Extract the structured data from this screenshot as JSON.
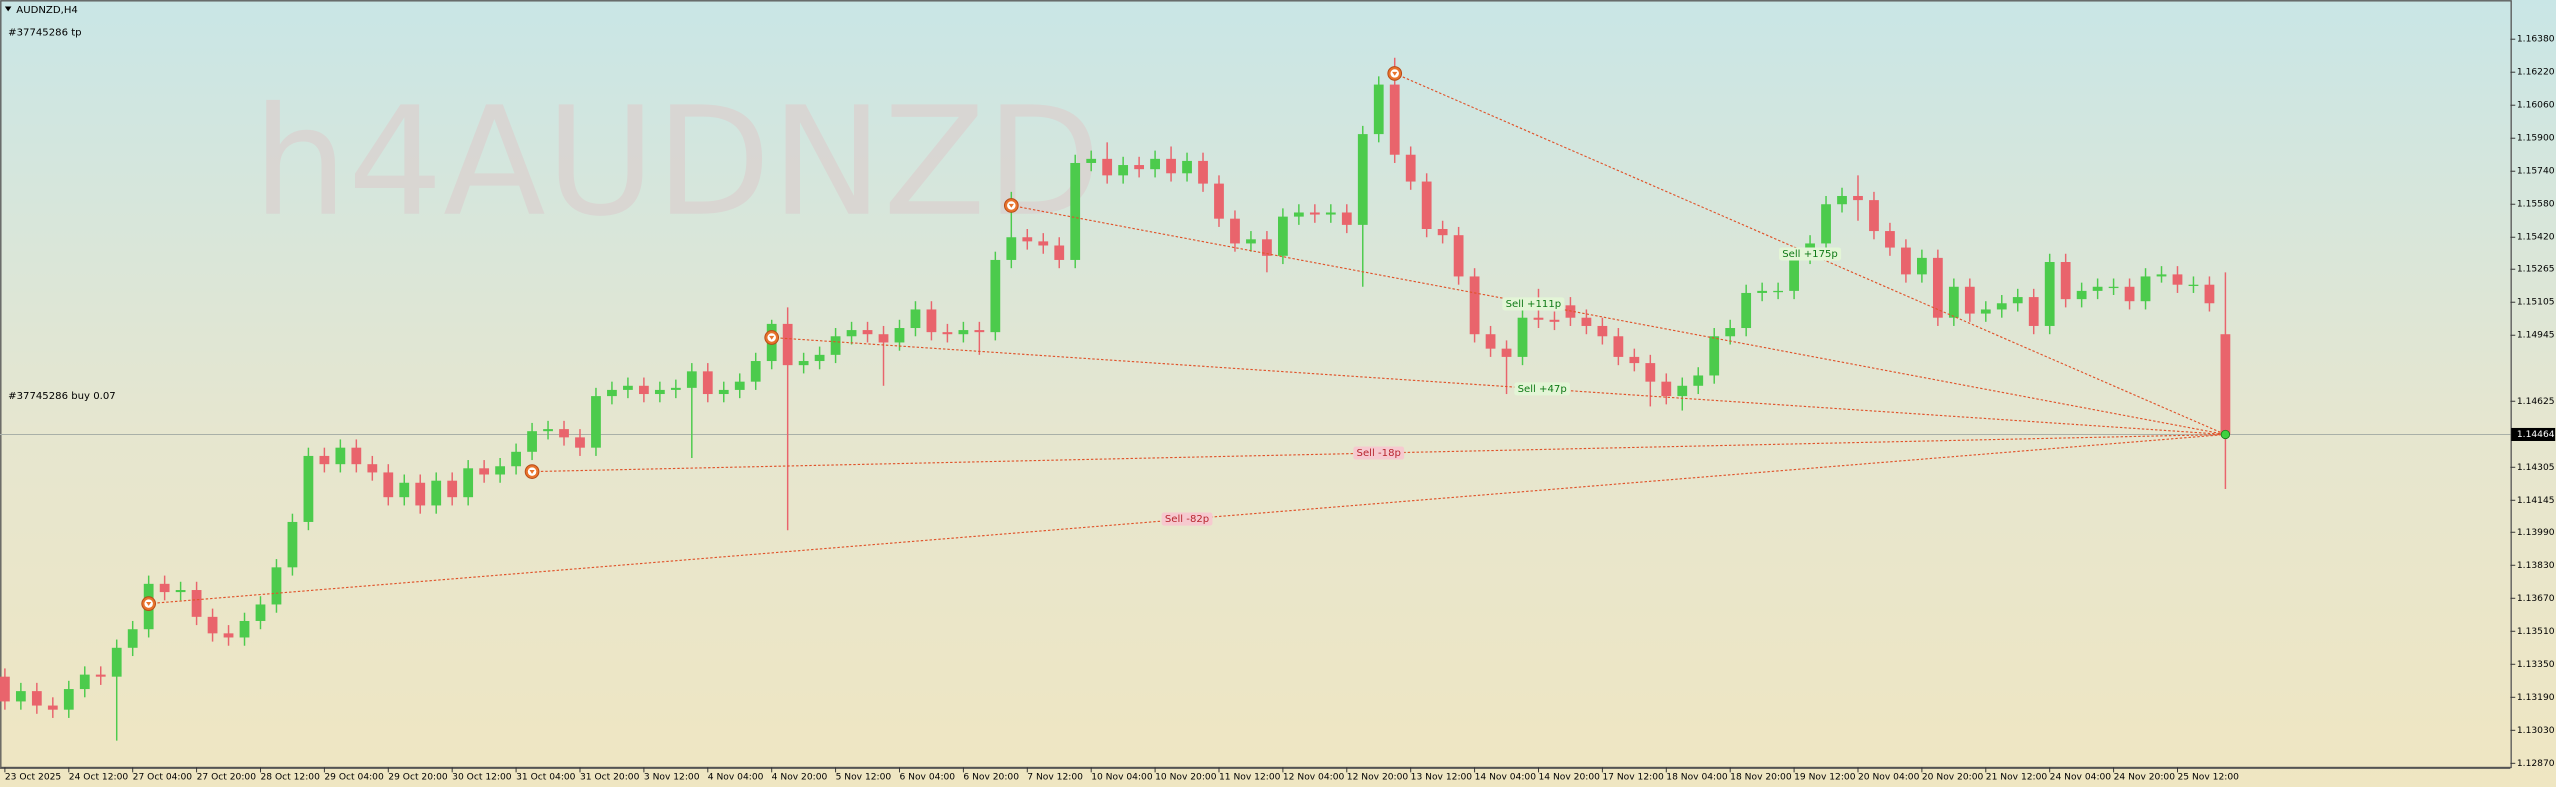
{
  "chart_data": {
    "type": "candlestick",
    "title": "AUDNZD,H4",
    "watermark": "h4AUDNZD",
    "order_labels": [
      "#37745286 tp",
      "#37745286 buy 0.07"
    ],
    "up_color": "#4ccb4c",
    "down_color": "#e9646c",
    "categories": [
      "23 Oct 2025",
      null,
      null,
      null,
      "24 Oct 12:00",
      null,
      null,
      null,
      "27 Oct 04:00",
      null,
      null,
      null,
      "27 Oct 20:00",
      null,
      null,
      null,
      "28 Oct 12:00",
      null,
      null,
      null,
      "29 Oct 04:00",
      null,
      null,
      null,
      "29 Oct 20:00",
      null,
      null,
      null,
      "30 Oct 12:00",
      null,
      null,
      null,
      "31 Oct 04:00",
      null,
      null,
      null,
      "31 Oct 20:00",
      null,
      null,
      null,
      "3 Nov 12:00",
      null,
      null,
      null,
      "4 Nov 04:00",
      null,
      null,
      null,
      "4 Nov 20:00",
      null,
      null,
      null,
      "5 Nov 12:00",
      null,
      null,
      null,
      "6 Nov 04:00",
      null,
      null,
      null,
      "6 Nov 20:00",
      null,
      null,
      null,
      "7 Nov 12:00",
      null,
      null,
      null,
      "10 Nov 04:00",
      null,
      null,
      null,
      "10 Nov 20:00",
      null,
      null,
      null,
      "11 Nov 12:00",
      null,
      null,
      null,
      "12 Nov 04:00",
      null,
      null,
      null,
      "12 Nov 20:00",
      null,
      null,
      null,
      "13 Nov 12:00",
      null,
      null,
      null,
      "14 Nov 04:00",
      null,
      null,
      null,
      "14 Nov 20:00",
      null,
      null,
      null,
      "17 Nov 12:00",
      null,
      null,
      null,
      "18 Nov 04:00",
      null,
      null,
      null,
      "18 Nov 20:00",
      null,
      null,
      null,
      "19 Nov 12:00",
      null,
      null,
      null,
      "20 Nov 04:00",
      null,
      null,
      null,
      "20 Nov 20:00",
      null,
      null,
      null,
      "21 Nov 12:00",
      null,
      null,
      null,
      "24 Nov 04:00",
      null,
      null,
      null,
      "24 Nov 20:00",
      null,
      null,
      null,
      "25 Nov 12:00",
      null,
      null,
      null
    ],
    "open": [
      1.1329,
      1.1317,
      1.1322,
      1.1315,
      1.1313,
      1.1323,
      1.133,
      1.1329,
      1.1343,
      1.1352,
      1.1374,
      1.137,
      1.1371,
      1.1358,
      1.135,
      1.1348,
      1.1356,
      1.1364,
      1.1382,
      1.1404,
      1.1436,
      1.1432,
      1.144,
      1.1432,
      1.1428,
      1.1416,
      1.1423,
      1.1412,
      1.1424,
      1.1416,
      1.143,
      1.1427,
      1.1431,
      1.1438,
      1.1448,
      1.1449,
      1.1445,
      1.144,
      1.1465,
      1.1468,
      1.147,
      1.1466,
      1.1468,
      1.1469,
      1.1477,
      1.1466,
      1.1468,
      1.1472,
      1.1482,
      1.15,
      1.148,
      1.1482,
      1.1485,
      1.1494,
      1.1497,
      1.1495,
      1.1491,
      1.1498,
      1.1507,
      1.1496,
      1.1495,
      1.1497,
      1.1496,
      1.1531,
      1.1542,
      1.154,
      1.1538,
      1.1531,
      1.1578,
      1.158,
      1.1572,
      1.1577,
      1.1575,
      1.158,
      1.1573,
      1.1579,
      1.1568,
      1.1551,
      1.1539,
      1.1541,
      1.1533,
      1.1552,
      1.1554,
      1.1553,
      1.1554,
      1.1548,
      1.1592,
      1.1616,
      1.1582,
      1.1569,
      1.1546,
      1.1543,
      1.1523,
      1.1495,
      1.1488,
      1.1484,
      1.1503,
      1.1502,
      1.1509,
      1.1503,
      1.1499,
      1.1494,
      1.1484,
      1.1481,
      1.1472,
      1.1465,
      1.147,
      1.1475,
      1.1494,
      1.1498,
      1.1515,
      1.1516,
      1.1516,
      1.1533,
      1.1539,
      1.1558,
      1.1562,
      1.156,
      1.1545,
      1.1537,
      1.1524,
      1.1532,
      1.1503,
      1.1518,
      1.1505,
      1.1507,
      1.151,
      1.1513,
      1.1499,
      1.153,
      1.1512,
      1.1516,
      1.1518,
      1.1518,
      1.1511,
      1.1523,
      1.1524,
      1.1519,
      1.1519,
      1.1495
    ],
    "high": [
      1.1333,
      1.1326,
      1.1326,
      1.1319,
      1.1327,
      1.1334,
      1.1334,
      1.1347,
      1.1356,
      1.1378,
      1.1378,
      1.1375,
      1.1375,
      1.1362,
      1.1354,
      1.136,
      1.1368,
      1.1386,
      1.1408,
      1.144,
      1.144,
      1.1444,
      1.1444,
      1.1436,
      1.1432,
      1.1427,
      1.1427,
      1.1428,
      1.1428,
      1.1434,
      1.1434,
      1.1435,
      1.1442,
      1.1452,
      1.1453,
      1.1453,
      1.1449,
      1.1469,
      1.1472,
      1.1474,
      1.1474,
      1.1472,
      1.1473,
      1.1481,
      1.1481,
      1.1472,
      1.1476,
      1.1486,
      1.1502,
      1.1508,
      1.1486,
      1.1489,
      1.1498,
      1.1501,
      1.1501,
      1.1499,
      1.1502,
      1.1511,
      1.1511,
      1.15,
      1.1501,
      1.1501,
      1.1535,
      1.1564,
      1.1546,
      1.1544,
      1.1542,
      1.1582,
      1.1584,
      1.1588,
      1.1581,
      1.1581,
      1.1584,
      1.1586,
      1.1583,
      1.1583,
      1.1572,
      1.1555,
      1.1545,
      1.1545,
      1.1556,
      1.1558,
      1.1558,
      1.1558,
      1.1558,
      1.1596,
      1.162,
      1.1629,
      1.1586,
      1.1573,
      1.155,
      1.1547,
      1.1527,
      1.1499,
      1.1492,
      1.1507,
      1.1517,
      1.1506,
      1.1513,
      1.1507,
      1.1503,
      1.1498,
      1.1488,
      1.1485,
      1.1476,
      1.1474,
      1.1479,
      1.1498,
      1.1502,
      1.1519,
      1.152,
      1.152,
      1.1537,
      1.1543,
      1.1562,
      1.1566,
      1.1572,
      1.1564,
      1.1549,
      1.1541,
      1.1536,
      1.1536,
      1.1522,
      1.1522,
      1.1511,
      1.1514,
      1.1517,
      1.1517,
      1.1534,
      1.1534,
      1.152,
      1.1522,
      1.1522,
      1.1522,
      1.1527,
      1.1528,
      1.1528,
      1.1523,
      1.1523,
      1.1525
    ],
    "low": [
      1.1313,
      1.1313,
      1.1311,
      1.1309,
      1.1309,
      1.1319,
      1.1325,
      1.1298,
      1.1339,
      1.1348,
      1.1366,
      1.1366,
      1.1354,
      1.1346,
      1.1344,
      1.1344,
      1.1352,
      1.136,
      1.1378,
      1.14,
      1.1428,
      1.1428,
      1.1428,
      1.1424,
      1.1412,
      1.1412,
      1.1408,
      1.1408,
      1.1412,
      1.1412,
      1.1423,
      1.1423,
      1.1427,
      1.1434,
      1.1444,
      1.1441,
      1.1436,
      1.1436,
      1.1461,
      1.1464,
      1.1462,
      1.1462,
      1.1464,
      1.1435,
      1.1462,
      1.1462,
      1.1464,
      1.1468,
      1.1478,
      1.14,
      1.1476,
      1.1478,
      1.1481,
      1.149,
      1.1491,
      1.147,
      1.1487,
      1.1494,
      1.1492,
      1.1491,
      1.1491,
      1.1485,
      1.1492,
      1.1527,
      1.1536,
      1.1534,
      1.1527,
      1.1527,
      1.1574,
      1.1568,
      1.1568,
      1.1571,
      1.1571,
      1.1569,
      1.1569,
      1.1564,
      1.1547,
      1.1535,
      1.1535,
      1.1525,
      1.1529,
      1.1548,
      1.1549,
      1.1549,
      1.1544,
      1.1518,
      1.1588,
      1.1578,
      1.1565,
      1.1542,
      1.1539,
      1.1519,
      1.1491,
      1.1484,
      1.1466,
      1.148,
      1.1498,
      1.1497,
      1.1499,
      1.1495,
      1.149,
      1.148,
      1.1477,
      1.146,
      1.1461,
      1.1458,
      1.1466,
      1.1471,
      1.149,
      1.1494,
      1.1511,
      1.1512,
      1.1512,
      1.1529,
      1.1535,
      1.1554,
      1.155,
      1.1541,
      1.1533,
      1.152,
      1.152,
      1.1499,
      1.1499,
      1.1501,
      1.1501,
      1.1503,
      1.1506,
      1.1495,
      1.1495,
      1.1508,
      1.1508,
      1.1512,
      1.1514,
      1.1507,
      1.1507,
      1.152,
      1.1515,
      1.1515,
      1.1506,
      1.142
    ],
    "close": [
      1.1317,
      1.1322,
      1.1315,
      1.1313,
      1.1323,
      1.133,
      1.1329,
      1.1343,
      1.1352,
      1.1374,
      1.137,
      1.1371,
      1.1358,
      1.135,
      1.1348,
      1.1356,
      1.1364,
      1.1382,
      1.1404,
      1.1436,
      1.1432,
      1.144,
      1.1432,
      1.1428,
      1.1416,
      1.1423,
      1.1412,
      1.1424,
      1.1416,
      1.143,
      1.1427,
      1.1431,
      1.1438,
      1.1448,
      1.1449,
      1.1445,
      1.144,
      1.1465,
      1.1468,
      1.147,
      1.1466,
      1.1468,
      1.1469,
      1.1477,
      1.1466,
      1.1468,
      1.1472,
      1.1482,
      1.15,
      1.148,
      1.1482,
      1.1485,
      1.1494,
      1.1497,
      1.1495,
      1.1491,
      1.1498,
      1.1507,
      1.1496,
      1.1495,
      1.1497,
      1.1496,
      1.1531,
      1.1542,
      1.154,
      1.1538,
      1.1531,
      1.1578,
      1.158,
      1.1572,
      1.1577,
      1.1575,
      1.158,
      1.1573,
      1.1579,
      1.1568,
      1.1551,
      1.1539,
      1.1541,
      1.1533,
      1.1552,
      1.1554,
      1.1553,
      1.1554,
      1.1548,
      1.1592,
      1.1616,
      1.1582,
      1.1569,
      1.1546,
      1.1543,
      1.1523,
      1.1495,
      1.1488,
      1.1484,
      1.1503,
      1.1502,
      1.1501,
      1.1503,
      1.1499,
      1.1494,
      1.1484,
      1.1481,
      1.1472,
      1.1465,
      1.147,
      1.1475,
      1.1494,
      1.1498,
      1.1515,
      1.1516,
      1.1516,
      1.1533,
      1.1539,
      1.1558,
      1.1562,
      1.156,
      1.1545,
      1.1537,
      1.1524,
      1.1532,
      1.1503,
      1.1518,
      1.1505,
      1.1507,
      1.151,
      1.1513,
      1.1499,
      1.153,
      1.1512,
      1.1516,
      1.1518,
      1.1518,
      1.1511,
      1.1523,
      1.1524,
      1.1519,
      1.1519,
      1.151,
      1.14464
    ],
    "ylim": [
      1.1285,
      1.1657
    ],
    "yticks": [
      {
        "value": 1.1638,
        "label": "1.16380"
      },
      {
        "value": 1.1622,
        "label": "1.16220"
      },
      {
        "value": 1.1606,
        "label": "1.16060"
      },
      {
        "value": 1.159,
        "label": "1.15900"
      },
      {
        "value": 1.1574,
        "label": "1.15740"
      },
      {
        "value": 1.1558,
        "label": "1.15580"
      },
      {
        "value": 1.1542,
        "label": "1.15420"
      },
      1.15265,
      1.15105,
      1.14945,
      1.14625,
      1.14305,
      1.14145,
      {
        "value": 1.1399,
        "label": "1.13990"
      },
      {
        "value": 1.1383,
        "label": "1.13830"
      },
      {
        "value": 1.1367,
        "label": "1.13670"
      },
      {
        "value": 1.1351,
        "label": "1.13510"
      },
      {
        "value": 1.1335,
        "label": "1.13350"
      },
      {
        "value": 1.1319,
        "label": "1.13190"
      },
      {
        "value": 1.1303,
        "label": "1.13030"
      },
      {
        "value": 1.1287,
        "label": "1.12870"
      }
    ],
    "current_price": 1.14464,
    "trades": [
      {
        "index": 9,
        "entry": 1.13644,
        "label": "Sell -82p"
      },
      {
        "index": 33,
        "entry": 1.14284,
        "label": "Sell -18p"
      },
      {
        "index": 48,
        "entry": 1.14934,
        "label": "Sell +47p"
      },
      {
        "index": 63,
        "entry": 1.15574,
        "label": "Sell +111p"
      },
      {
        "index": 87,
        "entry": 1.16214,
        "label": "Sell +175p"
      }
    ]
  }
}
